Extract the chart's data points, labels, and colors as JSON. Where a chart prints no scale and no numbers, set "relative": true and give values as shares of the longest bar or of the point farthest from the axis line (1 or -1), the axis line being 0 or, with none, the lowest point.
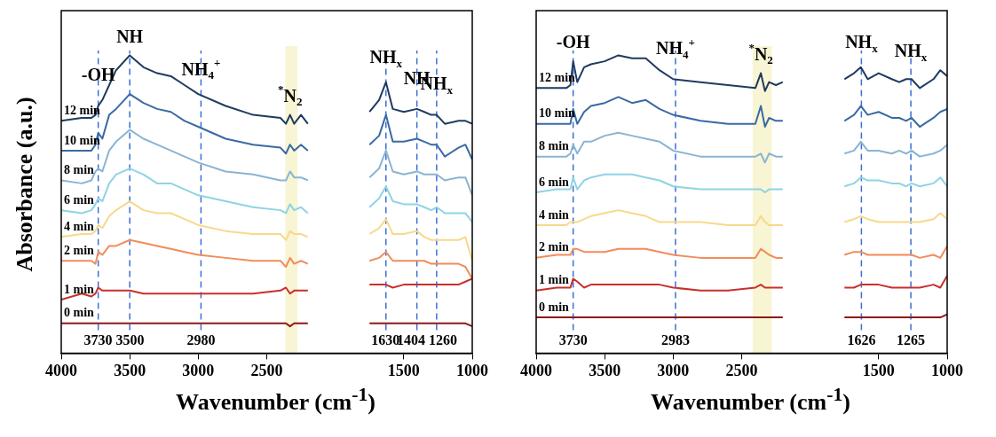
{
  "chart_data": [
    {
      "type": "line",
      "relative": true,
      "xlabel": "Wavenumber (cm$^{-1}$)",
      "ylabel": "Absorbance (a.u.)",
      "xlim": [
        4000,
        1000
      ],
      "xticks": [
        4000,
        3500,
        3000,
        2500,
        1500,
        1000
      ],
      "x": [
        4000,
        3850,
        3780,
        3750,
        3730,
        3700,
        3650,
        3600,
        3500,
        3400,
        3300,
        3200,
        3100,
        3000,
        2800,
        2600,
        2400,
        2360,
        2330,
        2300,
        2250,
        2200,
        2000,
        1750,
        1680,
        1630,
        1580,
        1500,
        1404,
        1350,
        1300,
        1260,
        1200,
        1100,
        1050,
        1000
      ],
      "series": [
        {
          "name": "12 min",
          "color": "#1f3a5f",
          "values": [
            0.78,
            0.79,
            0.79,
            0.8,
            0.83,
            0.85,
            0.9,
            0.95,
            1,
            0.96,
            0.94,
            0.93,
            0.9,
            0.87,
            0.83,
            0.8,
            0.79,
            0.77,
            0.8,
            0.77,
            0.8,
            0.77,
            null,
            0.81,
            0.85,
            0.91,
            0.82,
            0.81,
            0.82,
            0.81,
            0.8,
            0.8,
            0.77,
            0.78,
            0.78,
            0.77
          ]
        },
        {
          "name": "10 min",
          "color": "#3a6aa3",
          "values": [
            0.68,
            0.68,
            0.68,
            0.7,
            0.74,
            0.72,
            0.8,
            0.82,
            0.87,
            0.84,
            0.82,
            0.81,
            0.78,
            0.76,
            0.72,
            0.7,
            0.69,
            0.67,
            0.7,
            0.68,
            0.7,
            0.68,
            null,
            0.7,
            0.73,
            0.8,
            0.71,
            0.71,
            0.72,
            0.71,
            0.7,
            0.7,
            0.66,
            0.69,
            0.7,
            0.65
          ]
        },
        {
          "name": "8 min",
          "color": "#8ab4d4",
          "values": [
            0.58,
            0.57,
            0.58,
            0.61,
            0.62,
            0.61,
            0.68,
            0.71,
            0.75,
            0.72,
            0.7,
            0.68,
            0.66,
            0.64,
            0.61,
            0.6,
            0.58,
            0.58,
            0.61,
            0.59,
            0.59,
            0.58,
            null,
            0.59,
            0.62,
            0.68,
            0.61,
            0.6,
            0.61,
            0.6,
            0.6,
            0.6,
            0.58,
            0.59,
            0.59,
            0.53
          ]
        },
        {
          "name": "6 min",
          "color": "#8fd3e4",
          "values": [
            0.48,
            0.47,
            0.48,
            0.5,
            0.52,
            0.51,
            0.57,
            0.6,
            0.62,
            0.6,
            0.57,
            0.57,
            0.55,
            0.53,
            0.51,
            0.49,
            0.48,
            0.47,
            0.5,
            0.48,
            0.49,
            0.47,
            null,
            0.49,
            0.52,
            0.56,
            0.51,
            0.5,
            0.5,
            0.49,
            0.48,
            0.49,
            0.47,
            0.47,
            0.47,
            0.44
          ]
        },
        {
          "name": "4 min",
          "color": "#f7d98b",
          "values": [
            0.39,
            0.4,
            0.4,
            0.41,
            0.43,
            0.42,
            0.46,
            0.48,
            0.51,
            0.48,
            0.47,
            0.47,
            0.45,
            0.43,
            0.41,
            0.4,
            0.4,
            0.38,
            0.41,
            0.4,
            0.4,
            0.39,
            null,
            0.4,
            0.42,
            0.45,
            0.4,
            0.4,
            0.41,
            0.39,
            0.38,
            0.38,
            0.38,
            0.38,
            0.39,
            0.31
          ]
        },
        {
          "name": "2 min",
          "color": "#f28c5a",
          "values": [
            0.31,
            0.31,
            0.31,
            0.3,
            0.34,
            0.33,
            0.36,
            0.36,
            0.38,
            0.37,
            0.36,
            0.35,
            0.34,
            0.33,
            0.32,
            0.31,
            0.31,
            0.29,
            0.32,
            0.3,
            0.31,
            0.3,
            null,
            0.31,
            0.32,
            0.34,
            0.31,
            0.31,
            0.31,
            0.31,
            0.3,
            0.3,
            0.3,
            0.3,
            0.29,
            0.25
          ]
        },
        {
          "name": "1 min",
          "color": "#c8302c",
          "values": [
            0.18,
            0.2,
            0.19,
            0.2,
            0.22,
            0.21,
            0.21,
            0.21,
            0.21,
            0.2,
            0.2,
            0.2,
            0.2,
            0.2,
            0.2,
            0.2,
            0.21,
            0.22,
            0.2,
            0.21,
            0.21,
            0.21,
            null,
            0.23,
            0.23,
            0.23,
            0.22,
            0.23,
            0.23,
            0.23,
            0.23,
            0.23,
            0.23,
            0.23,
            0.24,
            0.25
          ]
        },
        {
          "name": "0 min",
          "color": "#8b1a1a",
          "values": [
            0.1,
            0.1,
            0.1,
            0.1,
            0.1,
            0.1,
            0.1,
            0.1,
            0.1,
            0.1,
            0.1,
            0.1,
            0.1,
            0.1,
            0.1,
            0.1,
            0.1,
            0.1,
            0.09,
            0.1,
            0.1,
            0.1,
            null,
            0.1,
            0.1,
            0.1,
            0.1,
            0.1,
            0.1,
            0.1,
            0.1,
            0.1,
            0.1,
            0.1,
            0.1,
            0.09
          ]
        }
      ],
      "annotations": [
        {
          "text": "-OH",
          "x": 3730,
          "y": 0.87
        },
        {
          "text": "NH",
          "x": 3500,
          "y": 1
        },
        {
          "text": "NH$_{4}$$^{+}$",
          "x": 2980,
          "y": 0.89
        },
        {
          "text": "$^{*}$N$_{2}$",
          "x": 2330,
          "y": 0.8
        },
        {
          "text": "NH$_{x}$",
          "x": 1630,
          "y": 0.93
        },
        {
          "text": "NH",
          "x": 1404,
          "y": 0.86
        },
        {
          "text": "NH$_{x}$",
          "x": 1260,
          "y": 0.84
        }
      ],
      "ref_lines": [
        {
          "axis": "x",
          "value": 3730,
          "label": "3730",
          "color": "#3b6fd4",
          "line_style": "dashed"
        },
        {
          "axis": "x",
          "value": 3500,
          "label": "3500",
          "color": "#3b6fd4",
          "line_style": "dashed"
        },
        {
          "axis": "x",
          "value": 2980,
          "label": "2980",
          "color": "#3b6fd4",
          "line_style": "dashed"
        },
        {
          "axis": "x",
          "value": 1630,
          "label": "1630",
          "color": "#3b6fd4",
          "line_style": "dashed"
        },
        {
          "axis": "x",
          "value": 1404,
          "label": "1404",
          "color": "#3b6fd4",
          "line_style": "dashed"
        },
        {
          "axis": "x",
          "value": 1260,
          "label": "1260",
          "color": "#3b6fd4",
          "line_style": "dashed"
        }
      ],
      "bands": [
        {
          "axis": "x",
          "from": 2365,
          "to": 2275,
          "color": "#f7f3cc"
        }
      ]
    },
    {
      "type": "line",
      "relative": true,
      "xlabel": "Wavenumber (cm$^{-1}$)",
      "xlim": [
        4000,
        1000
      ],
      "xticks": [
        4000,
        3500,
        3000,
        2500,
        1500,
        1000
      ],
      "x": [
        4000,
        3850,
        3780,
        3750,
        3730,
        3700,
        3650,
        3600,
        3500,
        3400,
        3300,
        3200,
        3100,
        3000,
        2800,
        2600,
        2400,
        2360,
        2330,
        2300,
        2250,
        2200,
        2000,
        1750,
        1680,
        1630,
        1580,
        1500,
        1404,
        1350,
        1300,
        1260,
        1200,
        1100,
        1050,
        1000
      ],
      "series": [
        {
          "name": "12 min",
          "color": "#1f3a5f",
          "values": [
            0.89,
            0.89,
            0.89,
            0.9,
            0.98,
            0.91,
            0.96,
            0.97,
            0.98,
            1,
            0.99,
            0.99,
            0.95,
            0.92,
            0.91,
            0.9,
            0.89,
            0.94,
            0.88,
            0.91,
            0.9,
            0.91,
            null,
            0.92,
            0.94,
            0.96,
            0.92,
            0.94,
            0.92,
            0.91,
            0.92,
            0.92,
            0.89,
            0.92,
            0.95,
            0.93
          ]
        },
        {
          "name": "10 min",
          "color": "#3a6aa3",
          "values": [
            0.77,
            0.77,
            0.77,
            0.77,
            0.82,
            0.77,
            0.81,
            0.83,
            0.84,
            0.86,
            0.84,
            0.85,
            0.82,
            0.8,
            0.78,
            0.77,
            0.77,
            0.83,
            0.76,
            0.79,
            0.78,
            0.78,
            null,
            0.78,
            0.8,
            0.83,
            0.8,
            0.81,
            0.79,
            0.79,
            0.78,
            0.79,
            0.76,
            0.79,
            0.81,
            0.82
          ]
        },
        {
          "name": "8 min",
          "color": "#8ab4d4",
          "values": [
            0.66,
            0.66,
            0.66,
            0.67,
            0.7,
            0.67,
            0.71,
            0.71,
            0.73,
            0.74,
            0.73,
            0.72,
            0.71,
            0.68,
            0.66,
            0.66,
            0.66,
            0.67,
            0.64,
            0.67,
            0.66,
            0.66,
            null,
            0.67,
            0.68,
            0.71,
            0.68,
            0.68,
            0.67,
            0.68,
            0.67,
            0.68,
            0.66,
            0.67,
            0.68,
            0.7
          ]
        },
        {
          "name": "6 min",
          "color": "#8fd3e4",
          "values": [
            0.54,
            0.55,
            0.55,
            0.55,
            0.59,
            0.55,
            0.58,
            0.59,
            0.6,
            0.6,
            0.6,
            0.59,
            0.58,
            0.56,
            0.55,
            0.55,
            0.55,
            0.55,
            0.54,
            0.55,
            0.55,
            0.55,
            null,
            0.56,
            0.57,
            0.59,
            0.58,
            0.58,
            0.57,
            0.57,
            0.56,
            0.57,
            0.56,
            0.57,
            0.59,
            0.56
          ]
        },
        {
          "name": "4 min",
          "color": "#f7d98b",
          "values": [
            0.43,
            0.43,
            0.43,
            0.44,
            0.44,
            0.44,
            0.45,
            0.46,
            0.47,
            0.48,
            0.47,
            0.46,
            0.44,
            0.44,
            0.44,
            0.43,
            0.43,
            0.46,
            0.44,
            0.43,
            0.43,
            0.43,
            null,
            0.44,
            0.45,
            0.46,
            0.45,
            0.44,
            0.44,
            0.44,
            0.44,
            0.44,
            0.44,
            0.45,
            0.47,
            0.45
          ]
        },
        {
          "name": "2 min",
          "color": "#f28c5a",
          "values": [
            0.32,
            0.33,
            0.33,
            0.33,
            0.35,
            0.35,
            0.34,
            0.34,
            0.34,
            0.35,
            0.35,
            0.35,
            0.34,
            0.33,
            0.32,
            0.32,
            0.32,
            0.35,
            0.34,
            0.33,
            0.32,
            0.32,
            null,
            0.33,
            0.34,
            0.34,
            0.33,
            0.33,
            0.33,
            0.33,
            0.33,
            0.33,
            0.32,
            0.33,
            0.32,
            0.36
          ]
        },
        {
          "name": "1 min",
          "color": "#c8302c",
          "values": [
            0.21,
            0.22,
            0.22,
            0.22,
            0.25,
            0.24,
            0.22,
            0.23,
            0.23,
            0.23,
            0.23,
            0.23,
            0.23,
            0.22,
            0.21,
            0.21,
            0.22,
            0.23,
            0.22,
            0.22,
            0.22,
            0.22,
            null,
            0.22,
            0.22,
            0.23,
            0.23,
            0.23,
            0.22,
            0.22,
            0.22,
            0.22,
            0.22,
            0.23,
            0.22,
            0.26
          ]
        },
        {
          "name": "0 min",
          "color": "#8b1a1a",
          "values": [
            0.12,
            0.12,
            0.12,
            0.12,
            0.12,
            0.12,
            0.12,
            0.12,
            0.12,
            0.12,
            0.12,
            0.12,
            0.12,
            0.12,
            0.12,
            0.12,
            0.12,
            0.12,
            0.12,
            0.12,
            0.12,
            0.12,
            null,
            0.12,
            0.12,
            0.12,
            0.12,
            0.12,
            0.12,
            0.12,
            0.12,
            0.12,
            0.12,
            0.12,
            0.12,
            0.13
          ]
        }
      ],
      "annotations": [
        {
          "text": "-OH",
          "x": 3730,
          "y": 0.98
        },
        {
          "text": "NH$_{4}$$^{+}$",
          "x": 2983,
          "y": 0.96
        },
        {
          "text": "$^{*}$N$_{2}$",
          "x": 2360,
          "y": 0.94
        },
        {
          "text": "NH$_{x}$",
          "x": 1626,
          "y": 0.98
        },
        {
          "text": "NH$_{x}$",
          "x": 1265,
          "y": 0.95
        }
      ],
      "ref_lines": [
        {
          "axis": "x",
          "value": 3730,
          "label": "3730",
          "color": "#3b6fd4",
          "line_style": "dashed"
        },
        {
          "axis": "x",
          "value": 2983,
          "label": "2983",
          "color": "#3b6fd4",
          "line_style": "dashed"
        },
        {
          "axis": "x",
          "value": 1626,
          "label": "1626",
          "color": "#3b6fd4",
          "line_style": "dashed"
        },
        {
          "axis": "x",
          "value": 1265,
          "label": "1265",
          "color": "#3b6fd4",
          "line_style": "dashed"
        }
      ],
      "bands": [
        {
          "axis": "x",
          "from": 2420,
          "to": 2280,
          "color": "#f7f3cc"
        }
      ]
    }
  ]
}
